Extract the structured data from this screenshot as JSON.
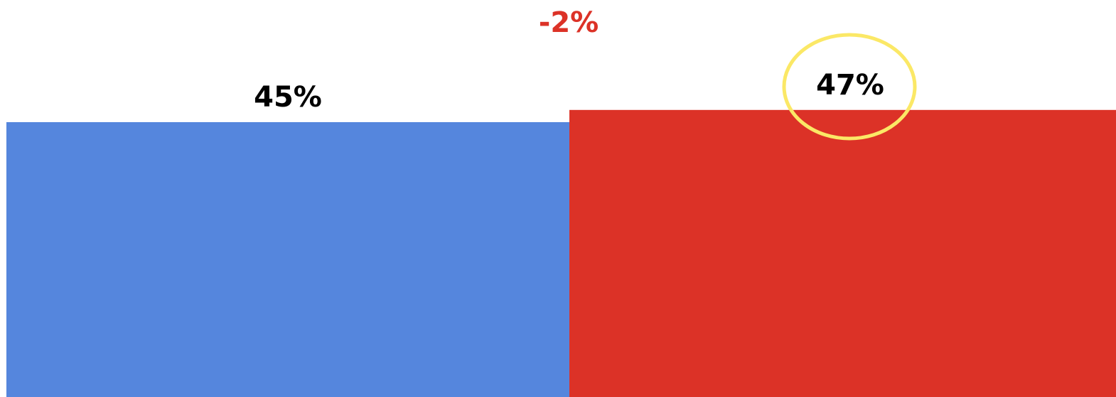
{
  "chart_data": {
    "type": "bar",
    "categories": [
      "",
      ""
    ],
    "values": [
      45,
      47
    ],
    "value_labels": [
      "45%",
      "47%"
    ],
    "colors": [
      "#5586DD",
      "#DC3227"
    ],
    "difference_label": "-2%",
    "difference_color": "#DC3227",
    "highlight": {
      "target_index": 1,
      "shape": "ellipse",
      "color": "#FBE866"
    },
    "ylim": [
      0,
      100
    ],
    "grid": false,
    "legend": "none"
  }
}
